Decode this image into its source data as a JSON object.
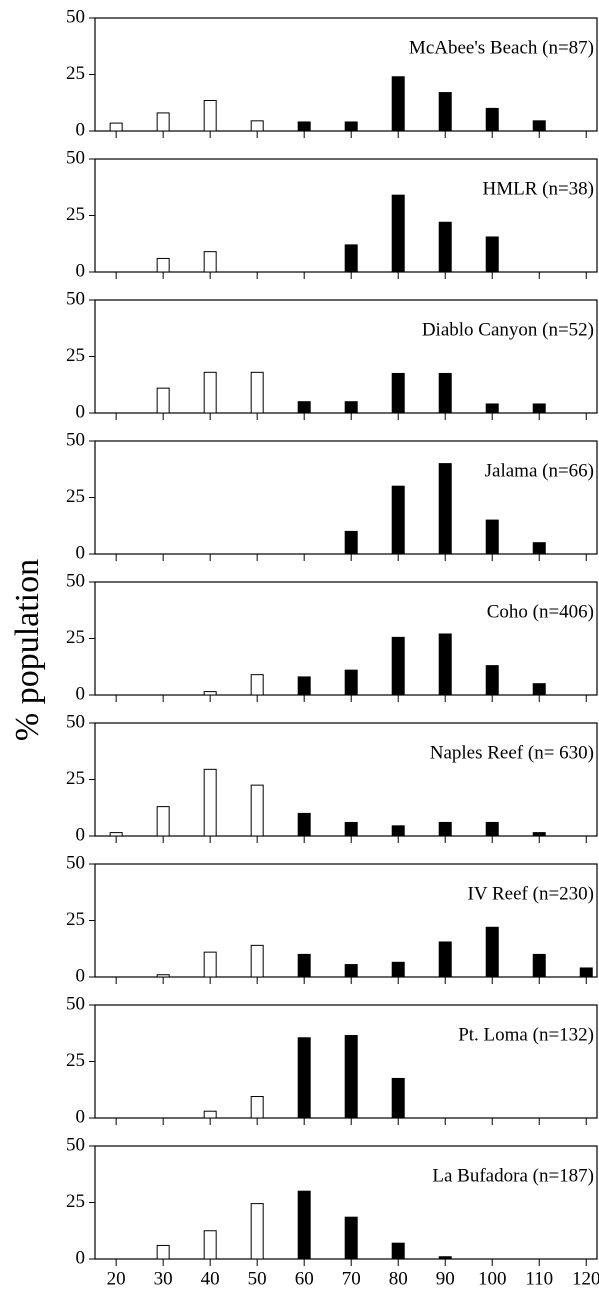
{
  "y_label": "% population",
  "chart_data": [
    {
      "type": "bar",
      "title": "McAbee's Beach (n=87)",
      "x": [
        20,
        30,
        40,
        50,
        60,
        70,
        80,
        90,
        100,
        110,
        120
      ],
      "values": [
        3.5,
        8,
        13.5,
        4.5,
        4,
        4,
        24,
        17,
        10,
        4.5,
        0
      ],
      "colors": [
        "#ffffff",
        "#ffffff",
        "#ffffff",
        "#ffffff",
        "#000000",
        "#000000",
        "#000000",
        "#000000",
        "#000000",
        "#000000",
        "#000000"
      ],
      "xlim": [
        15.5,
        122.5
      ],
      "xticks": [
        20,
        30,
        40,
        50,
        60,
        70,
        80,
        90,
        100,
        110,
        120
      ],
      "ylim": [
        0,
        50
      ],
      "yticks": [
        0,
        25,
        50
      ]
    },
    {
      "type": "bar",
      "title": "HMLR (n=38)",
      "x": [
        20,
        30,
        40,
        50,
        60,
        70,
        80,
        90,
        100,
        110,
        120
      ],
      "values": [
        0,
        6,
        9,
        0,
        0,
        12,
        34,
        22,
        15.5,
        0,
        0
      ],
      "colors": [
        "#ffffff",
        "#ffffff",
        "#ffffff",
        "#ffffff",
        "#000000",
        "#000000",
        "#000000",
        "#000000",
        "#000000",
        "#000000",
        "#000000"
      ],
      "xlim": [
        15.5,
        122.5
      ],
      "xticks": [
        20,
        30,
        40,
        50,
        60,
        70,
        80,
        90,
        100,
        110,
        120
      ],
      "ylim": [
        0,
        50
      ],
      "yticks": [
        0,
        25,
        50
      ]
    },
    {
      "type": "bar",
      "title": "Diablo Canyon (n=52)",
      "x": [
        20,
        30,
        40,
        50,
        60,
        70,
        80,
        90,
        100,
        110,
        120
      ],
      "values": [
        0,
        11,
        18,
        18,
        5,
        5,
        17.5,
        17.5,
        4,
        4,
        0
      ],
      "colors": [
        "#ffffff",
        "#ffffff",
        "#ffffff",
        "#ffffff",
        "#000000",
        "#000000",
        "#000000",
        "#000000",
        "#000000",
        "#000000",
        "#000000"
      ],
      "xlim": [
        15.5,
        122.5
      ],
      "xticks": [
        20,
        30,
        40,
        50,
        60,
        70,
        80,
        90,
        100,
        110,
        120
      ],
      "ylim": [
        0,
        50
      ],
      "yticks": [
        0,
        25,
        50
      ]
    },
    {
      "type": "bar",
      "title": "Jalama (n=66)",
      "x": [
        20,
        30,
        40,
        50,
        60,
        70,
        80,
        90,
        100,
        110,
        120
      ],
      "values": [
        0,
        0,
        0,
        0,
        0,
        10,
        30,
        40,
        15,
        5,
        0
      ],
      "colors": [
        "#ffffff",
        "#ffffff",
        "#ffffff",
        "#ffffff",
        "#000000",
        "#000000",
        "#000000",
        "#000000",
        "#000000",
        "#000000",
        "#000000"
      ],
      "xlim": [
        15.5,
        122.5
      ],
      "xticks": [
        20,
        30,
        40,
        50,
        60,
        70,
        80,
        90,
        100,
        110,
        120
      ],
      "ylim": [
        0,
        50
      ],
      "yticks": [
        0,
        25,
        50
      ]
    },
    {
      "type": "bar",
      "title": "Coho (n=406)",
      "x": [
        20,
        30,
        40,
        50,
        60,
        70,
        80,
        90,
        100,
        110,
        120
      ],
      "values": [
        0,
        0,
        1.5,
        9,
        8,
        11,
        25.5,
        27,
        13,
        5,
        0
      ],
      "colors": [
        "#ffffff",
        "#ffffff",
        "#ffffff",
        "#ffffff",
        "#000000",
        "#000000",
        "#000000",
        "#000000",
        "#000000",
        "#000000",
        "#000000"
      ],
      "xlim": [
        15.5,
        122.5
      ],
      "xticks": [
        20,
        30,
        40,
        50,
        60,
        70,
        80,
        90,
        100,
        110,
        120
      ],
      "ylim": [
        0,
        50
      ],
      "yticks": [
        0,
        25,
        50
      ]
    },
    {
      "type": "bar",
      "title": "Naples Reef (n= 630)",
      "x": [
        20,
        30,
        40,
        50,
        60,
        70,
        80,
        90,
        100,
        110,
        120
      ],
      "values": [
        1.5,
        13,
        29.5,
        22.5,
        10,
        6,
        4.5,
        6,
        6,
        1.5,
        0
      ],
      "colors": [
        "#ffffff",
        "#ffffff",
        "#ffffff",
        "#ffffff",
        "#000000",
        "#000000",
        "#000000",
        "#000000",
        "#000000",
        "#000000",
        "#000000"
      ],
      "xlim": [
        15.5,
        122.5
      ],
      "xticks": [
        20,
        30,
        40,
        50,
        60,
        70,
        80,
        90,
        100,
        110,
        120
      ],
      "ylim": [
        0,
        50
      ],
      "yticks": [
        0,
        25,
        50
      ]
    },
    {
      "type": "bar",
      "title": "IV Reef (n=230)",
      "x": [
        20,
        30,
        40,
        50,
        60,
        70,
        80,
        90,
        100,
        110,
        120
      ],
      "values": [
        0,
        1,
        11,
        14,
        10,
        5.5,
        6.5,
        15.5,
        22,
        10,
        4
      ],
      "colors": [
        "#ffffff",
        "#ffffff",
        "#ffffff",
        "#ffffff",
        "#000000",
        "#000000",
        "#000000",
        "#000000",
        "#000000",
        "#000000",
        "#000000"
      ],
      "xlim": [
        15.5,
        122.5
      ],
      "xticks": [
        20,
        30,
        40,
        50,
        60,
        70,
        80,
        90,
        100,
        110,
        120
      ],
      "ylim": [
        0,
        50
      ],
      "yticks": [
        0,
        25,
        50
      ]
    },
    {
      "type": "bar",
      "title": "Pt. Loma (n=132)",
      "x": [
        20,
        30,
        40,
        50,
        60,
        70,
        80,
        90,
        100,
        110,
        120
      ],
      "values": [
        0,
        0,
        3,
        9.5,
        35.5,
        36.5,
        17.5,
        0,
        0,
        0,
        0
      ],
      "colors": [
        "#ffffff",
        "#ffffff",
        "#ffffff",
        "#ffffff",
        "#000000",
        "#000000",
        "#000000",
        "#000000",
        "#000000",
        "#000000",
        "#000000"
      ],
      "xlim": [
        15.5,
        122.5
      ],
      "xticks": [
        20,
        30,
        40,
        50,
        60,
        70,
        80,
        90,
        100,
        110,
        120
      ],
      "ylim": [
        0,
        50
      ],
      "yticks": [
        0,
        25,
        50
      ]
    },
    {
      "type": "bar",
      "title": "La Bufadora (n=187)",
      "x": [
        20,
        30,
        40,
        50,
        60,
        70,
        80,
        90,
        100,
        110,
        120
      ],
      "values": [
        0,
        6,
        12.5,
        24.5,
        30,
        18.5,
        7,
        1,
        0,
        0,
        0
      ],
      "colors": [
        "#ffffff",
        "#ffffff",
        "#ffffff",
        "#ffffff",
        "#000000",
        "#000000",
        "#000000",
        "#000000",
        "#000000",
        "#000000",
        "#000000"
      ],
      "xlim": [
        15.5,
        122.5
      ],
      "xticks": [
        20,
        30,
        40,
        50,
        60,
        70,
        80,
        90,
        100,
        110,
        120
      ],
      "ylim": [
        0,
        50
      ],
      "yticks": [
        0,
        25,
        50
      ],
      "xtick_labels": true
    }
  ]
}
